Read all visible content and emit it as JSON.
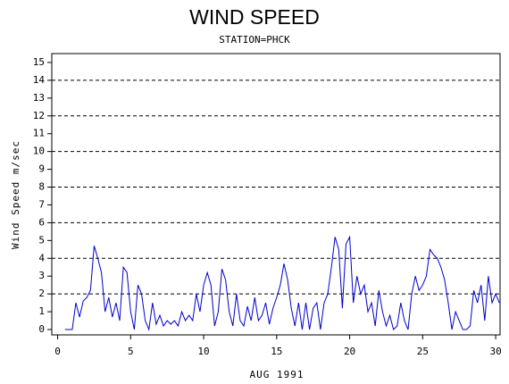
{
  "chart_data": {
    "type": "line",
    "title": "WIND SPEED",
    "subtitle": "STATION=PHCK",
    "xlabel": "AUG 1991",
    "ylabel": "Wind Speed m/sec",
    "xlim": [
      -0.4,
      30.3
    ],
    "ylim": [
      -0.3,
      15.5
    ],
    "xticks": [
      0,
      5,
      10,
      15,
      20,
      25,
      30
    ],
    "yticks": [
      0,
      1,
      2,
      3,
      4,
      5,
      6,
      7,
      8,
      9,
      10,
      11,
      12,
      13,
      14,
      15
    ],
    "reference_lines": [
      2,
      4,
      6,
      8,
      10,
      12,
      14
    ],
    "x": [
      0.5,
      0.75,
      1,
      1.25,
      1.5,
      1.75,
      2,
      2.25,
      2.5,
      2.75,
      3,
      3.25,
      3.5,
      3.75,
      4,
      4.25,
      4.5,
      4.75,
      5,
      5.25,
      5.5,
      5.75,
      6,
      6.25,
      6.5,
      6.75,
      7,
      7.25,
      7.5,
      7.75,
      8,
      8.25,
      8.5,
      8.75,
      9,
      9.25,
      9.5,
      9.75,
      10,
      10.25,
      10.5,
      10.75,
      11,
      11.25,
      11.5,
      11.75,
      12,
      12.25,
      12.5,
      12.75,
      13,
      13.25,
      13.5,
      13.75,
      14,
      14.25,
      14.5,
      14.75,
      15,
      15.25,
      15.5,
      15.75,
      16,
      16.25,
      16.5,
      16.75,
      17,
      17.25,
      17.5,
      17.75,
      18,
      18.25,
      18.5,
      18.75,
      19,
      19.25,
      19.5,
      19.75,
      20,
      20.25,
      20.5,
      20.75,
      21,
      21.25,
      21.5,
      21.75,
      22,
      22.25,
      22.5,
      22.75,
      23,
      23.25,
      23.5,
      23.75,
      24,
      24.25,
      24.5,
      24.75,
      25,
      25.25,
      25.5,
      25.75,
      26,
      26.25,
      26.5,
      26.75,
      27,
      27.25,
      27.5,
      27.75,
      28,
      28.25,
      28.5,
      28.75,
      29,
      29.25,
      29.5,
      29.75,
      30,
      30.25
    ],
    "series": [
      {
        "color": "#0000cc",
        "values": [
          0,
          0,
          0,
          1.5,
          0.7,
          1.6,
          1.8,
          2.2,
          4.7,
          4.0,
          3.2,
          1.0,
          1.8,
          0.7,
          1.5,
          0.5,
          3.5,
          3.2,
          1.0,
          0,
          2.5,
          2.0,
          0.5,
          0,
          1.5,
          0.3,
          0.8,
          0.2,
          0.5,
          0.3,
          0.5,
          0.2,
          1.0,
          0.5,
          0.8,
          0.5,
          2.0,
          1.0,
          2.5,
          3.2,
          2.5,
          0.2,
          1.0,
          3.4,
          2.8,
          1.0,
          0.2,
          2.0,
          0.5,
          0.2,
          1.3,
          0.5,
          1.8,
          0.5,
          0.8,
          1.5,
          0.3,
          1.2,
          1.8,
          2.5,
          3.7,
          2.8,
          1.2,
          0.2,
          1.5,
          0,
          1.5,
          0,
          1.2,
          1.5,
          0,
          1.5,
          2.0,
          3.5,
          5.2,
          4.5,
          1.2,
          4.8,
          5.2,
          1.5,
          3.0,
          2.0,
          2.5,
          1.0,
          1.5,
          0.2,
          2.2,
          1.0,
          0.2,
          0.8,
          0,
          0.2,
          1.5,
          0.5,
          0,
          2.0,
          3.0,
          2.2,
          2.5,
          3.0,
          4.5,
          4.2,
          4.0,
          3.5,
          2.8,
          1.5,
          0,
          1.0,
          0.5,
          0,
          0,
          0.2,
          2.2,
          1.5,
          2.5,
          0.5,
          3.0,
          1.5,
          2.0,
          1.5
        ]
      }
    ]
  }
}
